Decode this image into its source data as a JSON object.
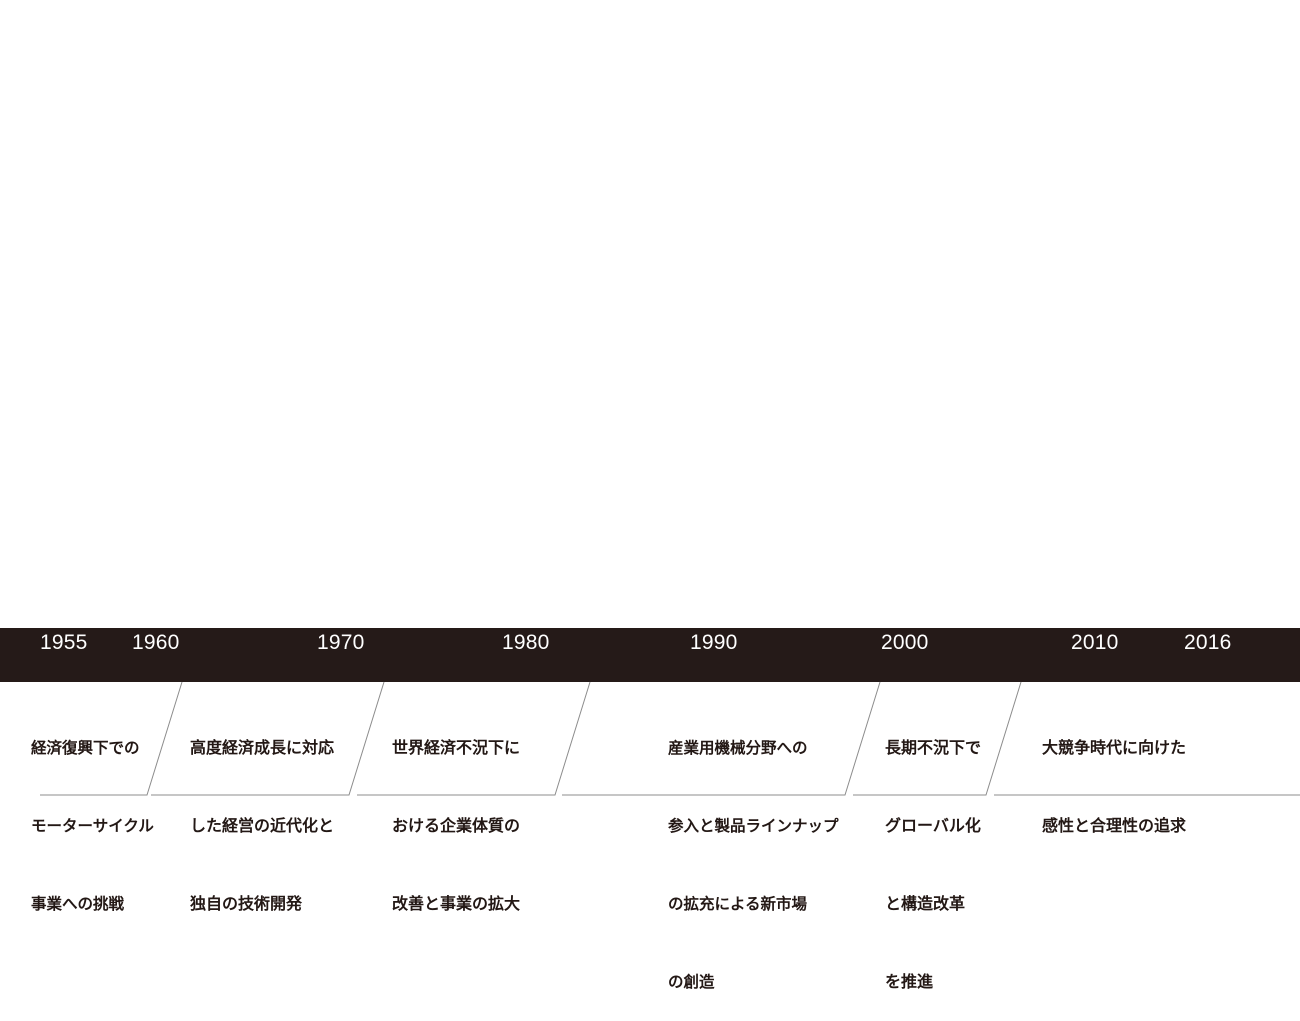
{
  "timeline": {
    "years": [
      "1955",
      "1960",
      "1970",
      "1980",
      "1990",
      "2000",
      "2010",
      "2016"
    ],
    "bar_color": "#251a18",
    "line_color": "#8c8c8c",
    "eras": [
      {
        "lines": [
          "経済復興下での",
          "モーターサイクル",
          "事業への挑戦"
        ]
      },
      {
        "lines": [
          "高度経済成長に対応",
          "した経営の近代化と",
          "独自の技術開発"
        ]
      },
      {
        "lines": [
          "世界経済不況下に",
          "おける企業体質の",
          "改善と事業の拡大"
        ]
      },
      {
        "lines": [
          "産業用機械分野への",
          "参入と製品ラインナップ",
          "の拡充による新市場",
          "の創造"
        ]
      },
      {
        "lines": [
          "長期不況下で",
          "グローバル化",
          "と構造改革",
          "を推進"
        ]
      },
      {
        "lines": [
          "大競争時代に向けた",
          "感性と合理性の追求"
        ]
      }
    ]
  }
}
